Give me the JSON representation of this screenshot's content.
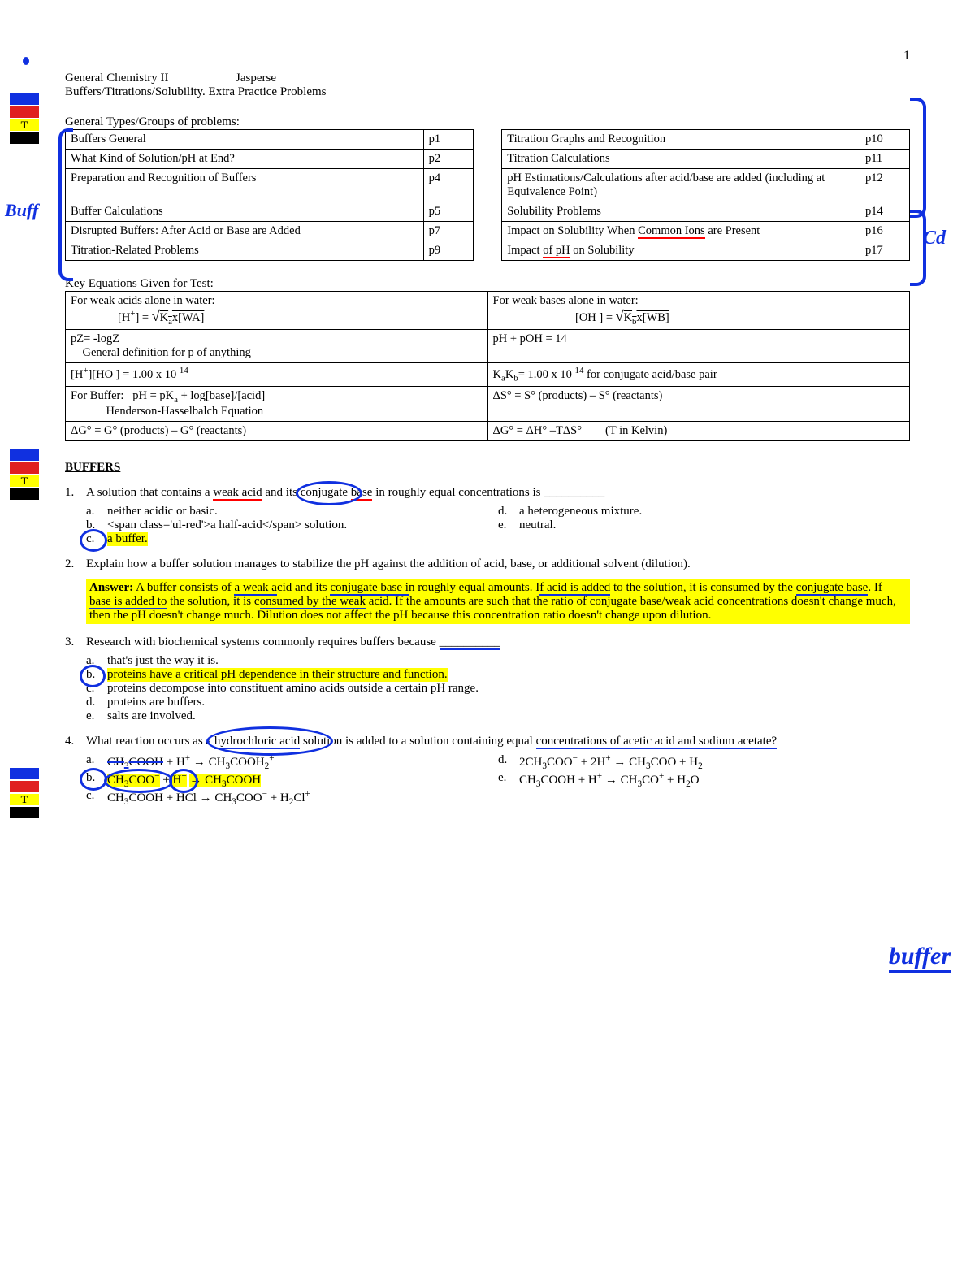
{
  "page_number": "1",
  "header": {
    "course": "General Chemistry II",
    "instructor": "Jasperse",
    "subtitle": "Buffers/Titrations/Solubility.  Extra Practice Problems"
  },
  "toc_heading": "General Types/Groups of problems:",
  "toc_rows": [
    {
      "l": "Buffers General",
      "lp": "p1",
      "r": "Titration Graphs and Recognition",
      "rp": "p10"
    },
    {
      "l": "What Kind of Solution/pH at End?",
      "lp": "p2",
      "r": "Titration Calculations",
      "rp": "p11"
    },
    {
      "l": "Preparation and Recognition of Buffers",
      "lp": "p4",
      "r": "pH Estimations/Calculations after acid/base are added (including at Equivalence Point)",
      "rp": "p12"
    },
    {
      "l": "Buffer Calculations",
      "lp": "p5",
      "r": "Solubility Problems",
      "rp": "p14"
    },
    {
      "l": "Disrupted Buffers:  After Acid or Base are Added",
      "lp": "p7",
      "r": "Impact on Solubility When Common Ions are Present",
      "rp": "p16",
      "ul_red_span": "Common Ions"
    },
    {
      "l": "Titration-Related Problems",
      "lp": "p9",
      "r": "Impact of pH on Solubility",
      "rp": "p17",
      "ul_red_span2": "of pH"
    }
  ],
  "eq_heading": "Key Equations Given for Test:",
  "eq_rows": [
    [
      "For weak acids alone in water:<br>&nbsp;&nbsp;&nbsp;&nbsp;&nbsp;&nbsp;&nbsp;&nbsp;&nbsp;&nbsp;&nbsp;&nbsp;&nbsp;&nbsp;&nbsp;&nbsp;[H<sup>+</sup>] = <span style='font-size:18px'>√</span><span style='text-decoration:overline'>K<sub>a</sub>x[WA]</span>",
      "For weak bases alone in water:<br>&nbsp;&nbsp;&nbsp;&nbsp;&nbsp;&nbsp;&nbsp;&nbsp;&nbsp;&nbsp;&nbsp;&nbsp;&nbsp;&nbsp;&nbsp;&nbsp;&nbsp;&nbsp;&nbsp;&nbsp;&nbsp;&nbsp;&nbsp;&nbsp;&nbsp;&nbsp;&nbsp;&nbsp;[OH<sup>-</sup>] = <span style='font-size:18px'>√</span><span style='text-decoration:overline'>K<sub>b</sub>x[WB]</span>"
    ],
    [
      "pZ= -logZ<br>&nbsp;&nbsp;&nbsp;&nbsp;General definition for p of anything",
      "pH + pOH = 14"
    ],
    [
      "[H<sup>+</sup>][HO<sup>-</sup>] = 1.00 x 10<sup>-14</sup>",
      "K<sub>a</sub>K<sub>b</sub>= 1.00 x 10<sup>-14</sup> for conjugate acid/base pair"
    ],
    [
      "For Buffer:&nbsp;&nbsp;&nbsp;pH = pK<sub>a</sub> + log[base]/[acid]<br>&nbsp;&nbsp;&nbsp;&nbsp;&nbsp;&nbsp;&nbsp;&nbsp;&nbsp;&nbsp;&nbsp;&nbsp;Henderson-Hasselbalch Equation",
      "ΔS° = S° (products) – S° (reactants)"
    ],
    [
      "ΔG° = G° (products) – G° (reactants)",
      "ΔG° = ΔH° –TΔS°&nbsp;&nbsp;&nbsp;&nbsp;&nbsp;&nbsp;&nbsp;&nbsp;(T in Kelvin)"
    ]
  ],
  "section_title": "BUFFERS",
  "questions": [
    {
      "num": "1.",
      "text_html": "A solution that contains a <span class='ul-red'>weak acid</span> and its <span style='position:relative'><span class='anno circle-blue' style='left:-6px;top:-6px;width:76px;height:24px'></span>conjugate</span> <span class='ul-red'>base</span> in roughly equal concentrations is __________",
      "options": [
        [
          {
            "letter": "a.",
            "text": "neither acidic or basic."
          },
          {
            "letter": "d.",
            "text": "a heterogeneous mixture."
          }
        ],
        [
          {
            "letter": "b.",
            "text": "<span class='ul-red'>a half-acid</span> solution."
          },
          {
            "letter": "e.",
            "text": "neutral."
          }
        ],
        [
          {
            "letter": "c.",
            "text": "a buffer.",
            "hl": true,
            "circle": true
          }
        ]
      ]
    },
    {
      "num": "2.",
      "text_html": "Explain how a buffer solution manages to stabilize the pH against the addition of acid, base, or additional solvent (dilution).",
      "answer_html": "<b><u>Answer:</u></b>  A buffer consists of <span class='ul-blue'>a weak a</span>cid and its <span class='ul-blue'>conjugate base i</span>n roughly equal amounts. I<span class='ul-blue'>f acid is added</span> to the solution, it is consumed by the <span class='ul-blue'>conjugate base</span>. If <span class='ul-blue'>base is added to</span> the solution, it is c<span class='ul-blue'>onsumed by the weak</span> acid. If the amounts are such that the ratio of conjugate base/weak acid concentrations doesn't change much, then the pH doesn't change much. Dilution does not affect the pH because this concentration ratio doesn't change upon dilution."
    },
    {
      "num": "3.",
      "text_html": "Research with biochemical systems commonly requires buffers because <span class='ul-blue'>__________</span>",
      "options_single": [
        {
          "letter": "a.",
          "text": "that's just the way it is."
        },
        {
          "letter": "b.",
          "text": "proteins have a critical pH dependence in their structure and function.",
          "hl": true,
          "circle": true
        },
        {
          "letter": "c.",
          "text": "proteins decompose into constituent amino acids outside a certain pH range."
        },
        {
          "letter": "d.",
          "text": "proteins are buffers."
        },
        {
          "letter": "e.",
          "text": "salts are involved."
        }
      ]
    },
    {
      "num": "4.",
      "text_html": "What reaction occurs as a <span style='position:relative'><span class='anno circle-blue' style='left:-10px;top:-10px;width:150px;height:30px'></span><span class='ul-blue'>hydrochloric acid</span></span> solution is added to a solution containing equal <span class='ul-blue'>concentrations of acetic acid and sodium acetate?</span>",
      "options": [
        [
          {
            "letter": "a.",
            "html": "<span style='text-decoration:line-through;text-decoration-color:#1030e0;text-decoration-thickness:2px'>CH<sub>3</sub>COOH</span> + H<sup>+</sup> → CH<sub>3</sub>COOH<sub>2</sub><sup>+</sup>"
          },
          {
            "letter": "d.",
            "html": "2CH<sub>3</sub>COO<sup>−</sup> + 2H<sup>+</sup> → CH<sub>3</sub>COO + H<sub>2</sub>"
          }
        ],
        [
          {
            "letter": "b.",
            "html": "<span class='hl-yellow' style='position:relative'><span class='anno circle-blue' style='left:-4px;top:-6px;width:80px;height:24px'></span>CH<sub>3</sub>COO<sup>−</sup></span> + <span class='hl-yellow' style='position:relative'><span class='anno circle-blue' style='left:-4px;top:-6px;width:30px;height:24px'></span>H<sup>+</sup></span> <span class='hl-yellow'>→ CH<sub>3</sub>COOH</span>",
            "circle": true
          },
          {
            "letter": "e.",
            "html": "CH<sub>3</sub>COOH + H<sup>+</sup> → CH<sub>3</sub>CO<sup>+</sup> + H<sub>2</sub>O"
          }
        ],
        [
          {
            "letter": "c.",
            "html": "CH<sub>3</sub>COOH + HCl → CH<sub>3</sub>COO<sup>−</sup> + H<sub>2</sub>Cl<sup>+</sup>"
          }
        ]
      ]
    }
  ],
  "hand_annotations": {
    "buff_left": "Buff",
    "cd_right": "Cd",
    "buffer_right": "buffer"
  },
  "colors": {
    "blue_ink": "#1030e0",
    "red_ink": "#ff0000",
    "highlight": "#ffff00"
  }
}
